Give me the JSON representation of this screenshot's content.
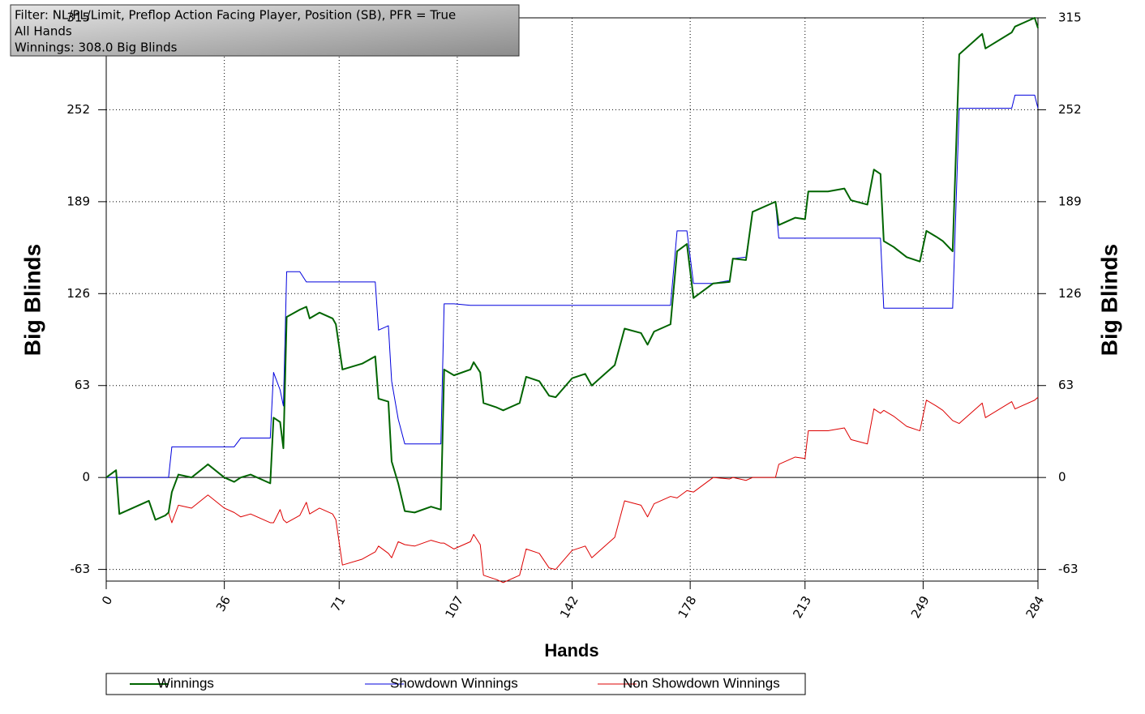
{
  "chart_data": {
    "type": "line",
    "info_lines": [
      "Filter: NL/PL/Limit, Preflop Action Facing Player, Position (SB), PFR = True",
      "All Hands",
      "Winnings: 308.0 Big Blinds"
    ],
    "x_label": "Hands",
    "y_label": "Big Blinds",
    "y2_label": "Big Blinds",
    "x": [
      0,
      3,
      4,
      13,
      15,
      18,
      19,
      20,
      22,
      26,
      31,
      36,
      39,
      41,
      44,
      50,
      51,
      53,
      54,
      55,
      59,
      61,
      62,
      65,
      69,
      70,
      72,
      78,
      82,
      83,
      86,
      87,
      89,
      91,
      94,
      99,
      102,
      103,
      106,
      111,
      112,
      114,
      115,
      119,
      121,
      126,
      128,
      132,
      135,
      137,
      142,
      146,
      148,
      151,
      155,
      158,
      163,
      165,
      167,
      172,
      174,
      177,
      179,
      185,
      190,
      191,
      195,
      197,
      204,
      205,
      210,
      213,
      214,
      220,
      225,
      227,
      232,
      234,
      236,
      237,
      240,
      244,
      248,
      250,
      253,
      255,
      258,
      260,
      267,
      268,
      276,
      277,
      283,
      284
    ],
    "series": [
      {
        "name": "Winnings",
        "color": "#006400",
        "width": 2,
        "values": [
          0,
          5,
          -25,
          -16,
          -29,
          -26,
          -24,
          -10,
          2,
          0,
          9,
          0,
          -3,
          0,
          2,
          -4,
          41,
          38,
          20,
          110,
          115,
          117,
          109,
          113,
          109,
          105,
          74,
          78,
          83,
          54,
          52,
          11,
          -4,
          -23,
          -24,
          -20,
          -22,
          74,
          70,
          74,
          79,
          72,
          51,
          48,
          46,
          51,
          69,
          66,
          56,
          55,
          68,
          71,
          63,
          69,
          77,
          102,
          99,
          91,
          100,
          105,
          155,
          160,
          123,
          133,
          134,
          150,
          149,
          182,
          189,
          173,
          178,
          177,
          196,
          196,
          198,
          190,
          187,
          211,
          208,
          162,
          158,
          151,
          148,
          169,
          165,
          162,
          155,
          290,
          304,
          294,
          305,
          309,
          315,
          308
        ]
      },
      {
        "name": "Showdown Winnings",
        "color": "#0000dd",
        "width": 1,
        "values": [
          0,
          0,
          0,
          0,
          0,
          0,
          0,
          21,
          21,
          21,
          21,
          21,
          21,
          27,
          27,
          27,
          72,
          60,
          49,
          141,
          141,
          134,
          134,
          134,
          134,
          134,
          134,
          134,
          134,
          101,
          104,
          66,
          40,
          23,
          23,
          23,
          23,
          119,
          119,
          118,
          118,
          118,
          118,
          118,
          118,
          118,
          118,
          118,
          118,
          118,
          118,
          118,
          118,
          118,
          118,
          118,
          118,
          118,
          118,
          118,
          169,
          169,
          133,
          133,
          135,
          150,
          151,
          182,
          189,
          164,
          164,
          164,
          164,
          164,
          164,
          164,
          164,
          164,
          164,
          116,
          116,
          116,
          116,
          116,
          116,
          116,
          116,
          253,
          253,
          253,
          253,
          262,
          262,
          253
        ]
      },
      {
        "name": "Non Showdown Winnings",
        "color": "#dd0000",
        "width": 1,
        "values": [
          0,
          5,
          -25,
          -16,
          -29,
          -26,
          -24,
          -31,
          -19,
          -21,
          -12,
          -21,
          -24,
          -27,
          -25,
          -31,
          -31,
          -22,
          -29,
          -31,
          -26,
          -17,
          -25,
          -21,
          -25,
          -29,
          -60,
          -56,
          -51,
          -47,
          -52,
          -55,
          -44,
          -46,
          -47,
          -43,
          -45,
          -45,
          -49,
          -44,
          -39,
          -46,
          -67,
          -70,
          -72,
          -67,
          -49,
          -52,
          -62,
          -63,
          -50,
          -47,
          -55,
          -49,
          -41,
          -16,
          -19,
          -27,
          -18,
          -13,
          -14,
          -9,
          -10,
          0,
          -1,
          0,
          -2,
          0,
          0,
          9,
          14,
          13,
          32,
          32,
          34,
          26,
          23,
          47,
          44,
          46,
          42,
          35,
          32,
          53,
          49,
          46,
          39,
          37,
          51,
          41,
          52,
          47,
          53,
          55
        ]
      }
    ],
    "xlim": [
      0,
      284
    ],
    "xticks": [
      0,
      36,
      71,
      107,
      142,
      178,
      213,
      249,
      284
    ],
    "ylim": [
      -71,
      315
    ],
    "yticks": [
      -63,
      0,
      63,
      126,
      189,
      252,
      315
    ],
    "y2lim": [
      -71,
      315
    ],
    "y2ticks": [
      -63,
      0,
      63,
      126,
      189,
      252,
      315
    ],
    "grid": true
  }
}
